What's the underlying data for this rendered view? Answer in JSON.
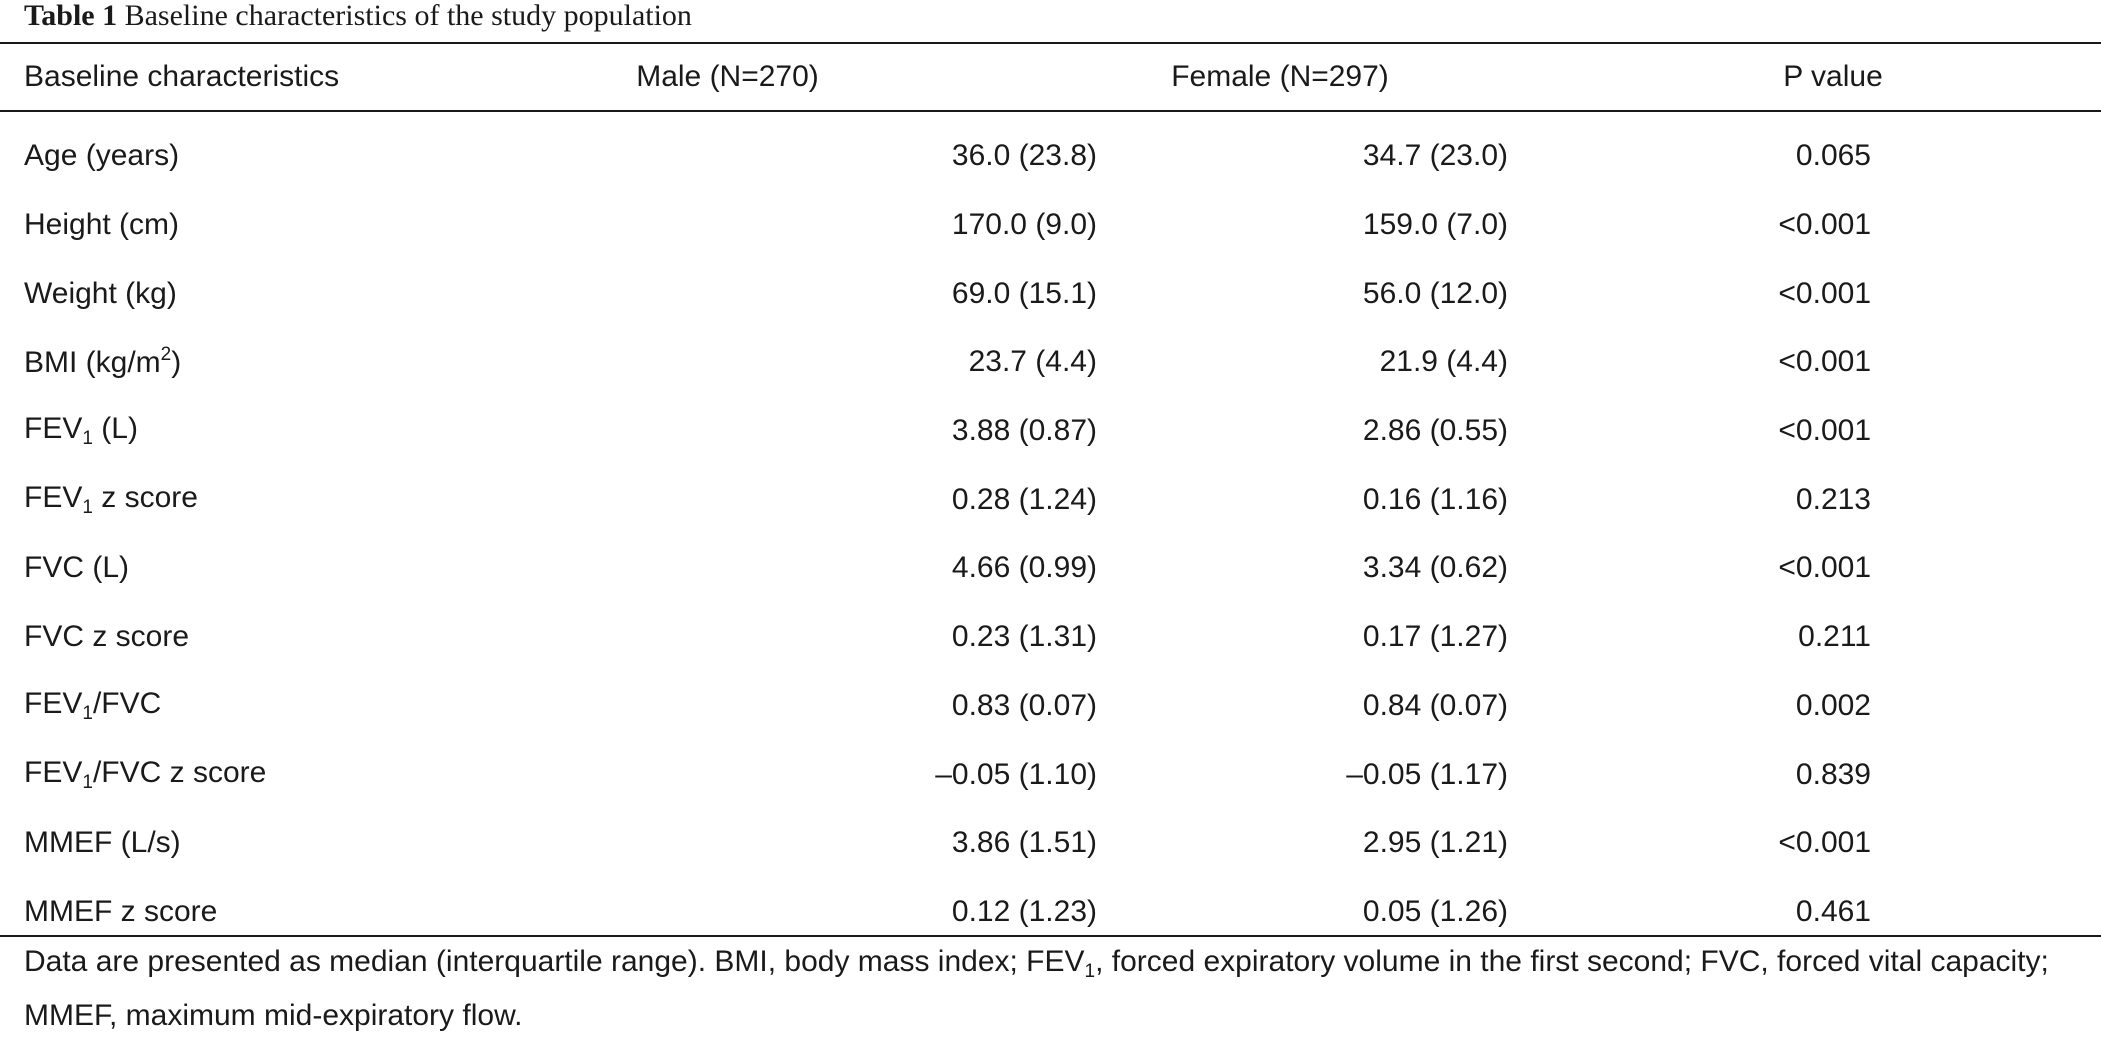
{
  "caption": {
    "label": "Table 1",
    "title": "Baseline characteristics of the study population"
  },
  "columns": [
    "Baseline characteristics",
    "Male (N=270)",
    "Female (N=297)",
    "P value"
  ],
  "rows": [
    {
      "label": "Age (years)",
      "male": "36.0 (23.8)",
      "female": "34.7 (23.0)",
      "p": "0.065"
    },
    {
      "label": "Height (cm)",
      "male": "170.0 (9.0)",
      "female": "159.0 (7.0)",
      "p": "<0.001"
    },
    {
      "label": "Weight (kg)",
      "male": "69.0 (15.1)",
      "female": "56.0 (12.0)",
      "p": "<0.001"
    },
    {
      "label_pre": "BMI (kg/m",
      "label_sup": "2",
      "label_post": ")",
      "male": "23.7 (4.4)",
      "female": "21.9 (4.4)",
      "p": "<0.001"
    },
    {
      "label_pre": "FEV",
      "label_sub": "1",
      "label_post": " (L)",
      "male": "3.88 (0.87)",
      "female": "2.86 (0.55)",
      "p": "<0.001"
    },
    {
      "label_pre": "FEV",
      "label_sub": "1",
      "label_post": " z score",
      "male": "0.28 (1.24)",
      "female": "0.16 (1.16)",
      "p": "0.213"
    },
    {
      "label": "FVC (L)",
      "male": "4.66 (0.99)",
      "female": "3.34 (0.62)",
      "p": "<0.001"
    },
    {
      "label": "FVC z score",
      "male": "0.23 (1.31)",
      "female": "0.17 (1.27)",
      "p": "0.211"
    },
    {
      "label_pre": "FEV",
      "label_sub": "1",
      "label_post": "/FVC",
      "male": "0.83 (0.07)",
      "female": "0.84 (0.07)",
      "p": "0.002"
    },
    {
      "label_pre": "FEV",
      "label_sub": "1",
      "label_post": "/FVC z score",
      "male": "–0.05 (1.10)",
      "female": "–0.05 (1.17)",
      "p": "0.839"
    },
    {
      "label": "MMEF (L/s)",
      "male": "3.86 (1.51)",
      "female": "2.95 (1.21)",
      "p": "<0.001"
    },
    {
      "label": "MMEF z score",
      "male": "0.12 (1.23)",
      "female": "0.05 (1.26)",
      "p": "0.461"
    }
  ],
  "footnote": {
    "part1": "Data are presented as median (interquartile range). BMI, body mass index; FEV",
    "sub": "1",
    "part2": ", forced expiratory volume in the first second; FVC, forced vital capacity; MMEF, maximum mid-expiratory flow."
  }
}
